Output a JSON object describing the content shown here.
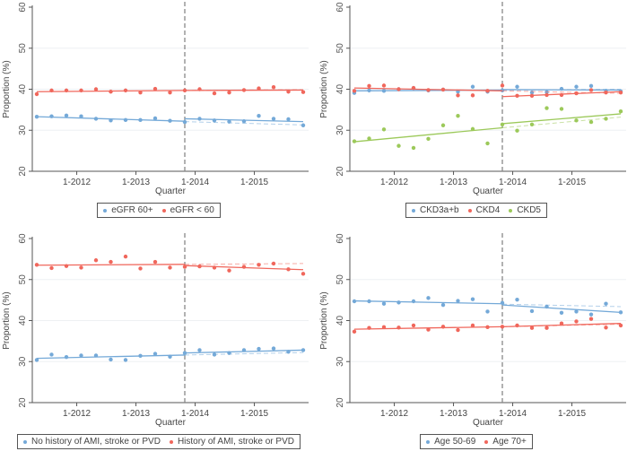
{
  "chart_data": [
    {
      "type": "scatter",
      "ylabel": "Proportion (%)",
      "xlabel": "Quarter",
      "ylim": [
        20,
        60
      ],
      "yticks": [
        20,
        30,
        40,
        50,
        60
      ],
      "xtick_labels": [
        "1-2012",
        "1-2013",
        "1-2014",
        "1-2015"
      ],
      "xtick_positions": [
        2.7,
        6.7,
        10.7,
        14.7
      ],
      "x": [
        0,
        1,
        2,
        3,
        4,
        5,
        6,
        7,
        8,
        9,
        10,
        11,
        12,
        13,
        14,
        15,
        16,
        17,
        18
      ],
      "intervention_x": 10,
      "series": [
        {
          "name": "eGFR 60+",
          "color": "#74a9d8",
          "values": [
            33.3,
            33.4,
            33.6,
            33.4,
            32.8,
            32.4,
            32.5,
            32.5,
            32.9,
            32.3,
            32.0,
            32.8,
            32.4,
            32.1,
            32.2,
            33.5,
            32.8,
            32.7,
            31.2
          ],
          "fit_pre": [
            33.3,
            32.2
          ],
          "fit_post": [
            32.8,
            32.1
          ],
          "counterfactual": [
            32.1,
            31.3
          ]
        },
        {
          "name": "eGFR < 60",
          "color": "#f0675c",
          "values": [
            38.8,
            39.7,
            39.7,
            39.7,
            40.0,
            39.4,
            39.7,
            39.2,
            40.1,
            39.2,
            39.7,
            40.0,
            39.0,
            39.2,
            39.8,
            40.2,
            40.5,
            39.4,
            39.3
          ],
          "fit_pre": [
            39.4,
            39.7
          ],
          "fit_post": [
            39.7,
            39.8
          ],
          "counterfactual": [
            39.7,
            39.9
          ]
        }
      ]
    },
    {
      "type": "scatter",
      "ylabel": "Proportion (%)",
      "xlabel": "Quarter",
      "ylim": [
        20,
        60
      ],
      "yticks": [
        20,
        30,
        40,
        50,
        60
      ],
      "xtick_labels": [
        "1-2012",
        "1-2013",
        "1-2014",
        "1-2015"
      ],
      "xtick_positions": [
        2.7,
        6.7,
        10.7,
        14.7
      ],
      "x": [
        0,
        1,
        2,
        3,
        4,
        5,
        6,
        7,
        8,
        9,
        10,
        11,
        12,
        13,
        14,
        15,
        16,
        17,
        18
      ],
      "intervention_x": 10,
      "series": [
        {
          "name": "CKD3a+b",
          "color": "#74a9d8",
          "values": [
            39.1,
            39.7,
            39.6,
            40.0,
            40.3,
            39.7,
            39.9,
            39.4,
            40.6,
            39.4,
            39.7,
            40.6,
            39.2,
            39.3,
            40.1,
            40.6,
            40.8,
            39.6,
            39.5
          ],
          "fit_pre": [
            39.6,
            39.8
          ],
          "fit_post": [
            39.9,
            39.8
          ],
          "counterfactual": [
            39.8,
            40.0
          ]
        },
        {
          "name": "CKD4",
          "color": "#f0675c",
          "values": [
            39.6,
            40.8,
            40.9,
            40.0,
            40.3,
            39.8,
            39.9,
            38.5,
            38.5,
            39.6,
            40.9,
            38.4,
            38.4,
            38.6,
            38.6,
            39.0,
            39.8,
            39.2,
            39.2
          ],
          "fit_pre": [
            40.3,
            39.6
          ],
          "fit_post": [
            38.2,
            39.4
          ],
          "counterfactual": [
            39.6,
            39.0
          ]
        },
        {
          "name": "CKD5",
          "color": "#9cc95a",
          "values": [
            27.3,
            28.0,
            30.2,
            26.2,
            25.7,
            27.9,
            31.2,
            33.5,
            30.3,
            26.8,
            31.4,
            29.9,
            31.4,
            35.4,
            35.2,
            32.4,
            32.0,
            32.8,
            34.6
          ],
          "fit_pre": [
            27.2,
            30.6
          ],
          "fit_post": [
            31.6,
            34.0
          ],
          "counterfactual": [
            30.6,
            33.2
          ]
        }
      ]
    },
    {
      "type": "scatter",
      "ylabel": "Proportion (%)",
      "xlabel": "Quarter",
      "ylim": [
        20,
        60
      ],
      "yticks": [
        20,
        30,
        40,
        50,
        60
      ],
      "xtick_labels": [
        "1-2012",
        "1-2013",
        "1-2014",
        "1-2015"
      ],
      "xtick_positions": [
        2.7,
        6.7,
        10.7,
        14.7
      ],
      "x": [
        0,
        1,
        2,
        3,
        4,
        5,
        6,
        7,
        8,
        9,
        10,
        11,
        12,
        13,
        14,
        15,
        16,
        17,
        18
      ],
      "intervention_x": 10,
      "series": [
        {
          "name": "No history of AMI, stroke or PVD",
          "color": "#74a9d8",
          "values": [
            30.4,
            31.7,
            31.1,
            31.5,
            31.5,
            30.5,
            30.4,
            31.4,
            31.9,
            31.2,
            32.1,
            32.8,
            31.7,
            32.1,
            32.8,
            33.1,
            33.2,
            32.4,
            32.8
          ],
          "fit_pre": [
            30.8,
            31.6
          ],
          "fit_post": [
            32.1,
            32.8
          ],
          "counterfactual": [
            31.6,
            32.2
          ]
        },
        {
          "name": "History of AMI, stroke or PVD",
          "color": "#f0675c",
          "values": [
            53.6,
            52.8,
            53.3,
            52.9,
            54.7,
            54.3,
            55.6,
            52.7,
            54.3,
            52.9,
            53.1,
            53.2,
            52.9,
            52.2,
            53.1,
            53.6,
            53.9,
            52.5,
            51.4
          ],
          "fit_pre": [
            53.5,
            53.7
          ],
          "fit_post": [
            53.4,
            52.4
          ],
          "counterfactual": [
            53.7,
            53.9
          ]
        }
      ]
    },
    {
      "type": "scatter",
      "ylabel": "Proportion (%)",
      "xlabel": "Quarter",
      "ylim": [
        20,
        60
      ],
      "yticks": [
        20,
        30,
        40,
        50,
        60
      ],
      "xtick_labels": [
        "1-2012",
        "1-2013",
        "1-2014",
        "1-2015"
      ],
      "xtick_positions": [
        2.7,
        6.7,
        10.7,
        14.7
      ],
      "x": [
        0,
        1,
        2,
        3,
        4,
        5,
        6,
        7,
        8,
        9,
        10,
        11,
        12,
        13,
        14,
        15,
        16,
        17,
        18
      ],
      "intervention_x": 10,
      "series": [
        {
          "name": "Age 50-69",
          "color": "#74a9d8",
          "values": [
            44.7,
            44.7,
            44.1,
            44.4,
            44.7,
            45.5,
            43.8,
            44.8,
            45.2,
            42.2,
            44.3,
            45.1,
            42.3,
            43.4,
            41.9,
            42.2,
            41.5,
            44.1,
            42.0
          ],
          "fit_pre": [
            44.8,
            44.1
          ],
          "fit_post": [
            43.8,
            42.0
          ],
          "counterfactual": [
            44.0,
            43.4
          ]
        },
        {
          "name": "Age 70+",
          "color": "#f0675c",
          "values": [
            37.3,
            38.2,
            38.4,
            38.3,
            38.8,
            37.8,
            38.5,
            37.7,
            38.8,
            38.4,
            38.5,
            38.8,
            38.2,
            38.2,
            39.3,
            39.8,
            40.4,
            38.3,
            38.8
          ],
          "fit_pre": [
            37.9,
            38.5
          ],
          "fit_post": [
            38.5,
            39.3
          ],
          "counterfactual": [
            38.5,
            39.1
          ]
        }
      ]
    }
  ]
}
